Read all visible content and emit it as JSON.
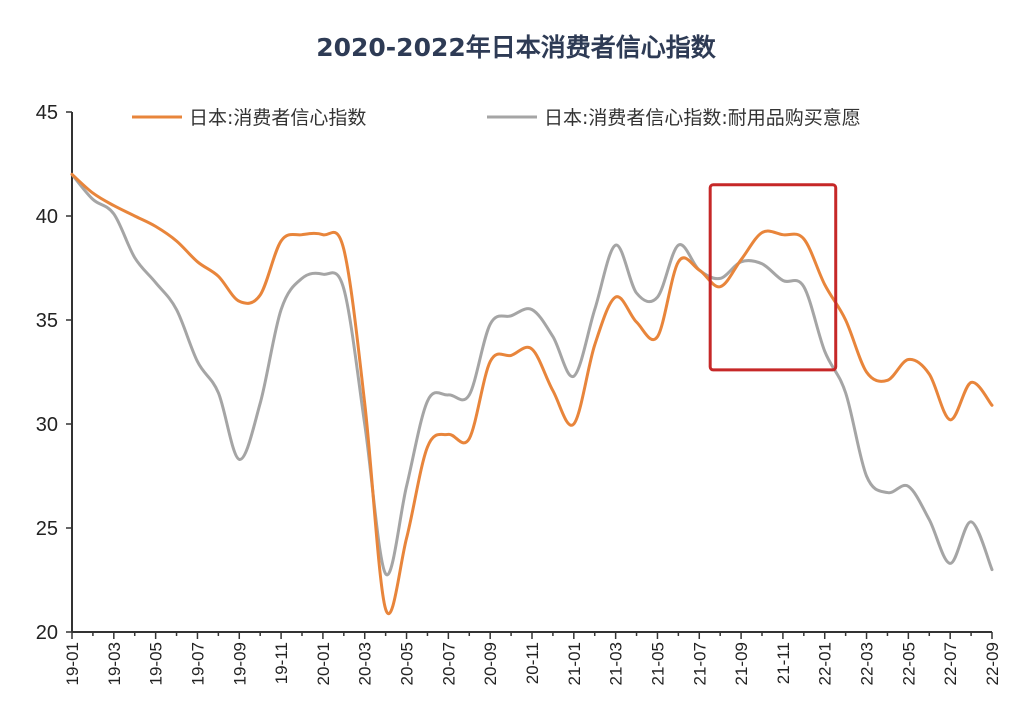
{
  "chart_data": {
    "type": "line",
    "title": "2020-2022年日本消费者信心指数",
    "xlabel": "",
    "ylabel": "",
    "ylim": [
      20,
      45
    ],
    "yticks": [
      20,
      25,
      30,
      35,
      40,
      45
    ],
    "x": [
      "19-01",
      "19-02",
      "19-03",
      "19-04",
      "19-05",
      "19-06",
      "19-07",
      "19-08",
      "19-09",
      "19-10",
      "19-11",
      "19-12",
      "20-01",
      "20-02",
      "20-03",
      "20-04",
      "20-05",
      "20-06",
      "20-07",
      "20-08",
      "20-09",
      "20-10",
      "20-11",
      "20-12",
      "21-01",
      "21-02",
      "21-03",
      "21-04",
      "21-05",
      "21-06",
      "21-07",
      "21-08",
      "21-09",
      "21-10",
      "21-11",
      "21-12",
      "22-01",
      "22-02",
      "22-03",
      "22-04",
      "22-05",
      "22-06",
      "22-07",
      "22-08",
      "22-09"
    ],
    "xtick_labels": [
      "19-01",
      "19-03",
      "19-05",
      "19-07",
      "19-09",
      "19-11",
      "20-01",
      "20-03",
      "20-05",
      "20-07",
      "20-09",
      "20-11",
      "21-01",
      "21-03",
      "21-05",
      "21-07",
      "21-09",
      "21-11",
      "22-01",
      "22-03",
      "22-05",
      "22-07",
      "22-09"
    ],
    "legend_position": "top",
    "grid": false,
    "series": [
      {
        "name": "日本:消费者信心指数",
        "color": "#e8853b",
        "values": [
          42.0,
          41.1,
          40.5,
          40.0,
          39.5,
          38.8,
          37.8,
          37.1,
          35.9,
          36.2,
          38.8,
          39.1,
          39.1,
          38.4,
          31.0,
          21.1,
          24.5,
          28.9,
          29.5,
          29.3,
          33.0,
          33.3,
          33.6,
          31.6,
          30.0,
          33.8,
          36.1,
          34.9,
          34.2,
          37.8,
          37.4,
          36.6,
          37.9,
          39.2,
          39.1,
          38.9,
          36.7,
          35.0,
          32.5,
          32.1,
          33.1,
          32.4,
          30.2,
          32.0,
          30.9
        ]
      },
      {
        "name": "日本:消费者信心指数:耐用品购买意愿",
        "color": "#a5a5a5",
        "values": [
          42.0,
          40.8,
          40.1,
          38.0,
          36.8,
          35.5,
          33.0,
          31.5,
          28.3,
          31.0,
          35.5,
          37.0,
          37.2,
          36.5,
          30.0,
          22.8,
          27.0,
          31.1,
          31.4,
          31.4,
          34.8,
          35.2,
          35.5,
          34.2,
          32.3,
          35.5,
          38.6,
          36.3,
          36.1,
          38.6,
          37.4,
          37.0,
          37.8,
          37.7,
          36.9,
          36.6,
          33.5,
          31.5,
          27.5,
          26.7,
          27.0,
          25.4,
          23.3,
          25.3,
          23.0
        ]
      }
    ],
    "highlight_box": {
      "x_from": "21-08",
      "x_to": "22-01",
      "y_from": 32.6,
      "y_to": 41.5,
      "color": "#c62828"
    }
  }
}
